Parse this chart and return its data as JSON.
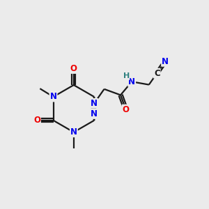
{
  "bg_color": "#ebebeb",
  "atom_colors": {
    "N": "#0000ee",
    "O": "#ee0000",
    "C": "#1a1a1a",
    "H": "#2f8080"
  },
  "bond_color": "#1a1a1a",
  "lw": 1.6
}
